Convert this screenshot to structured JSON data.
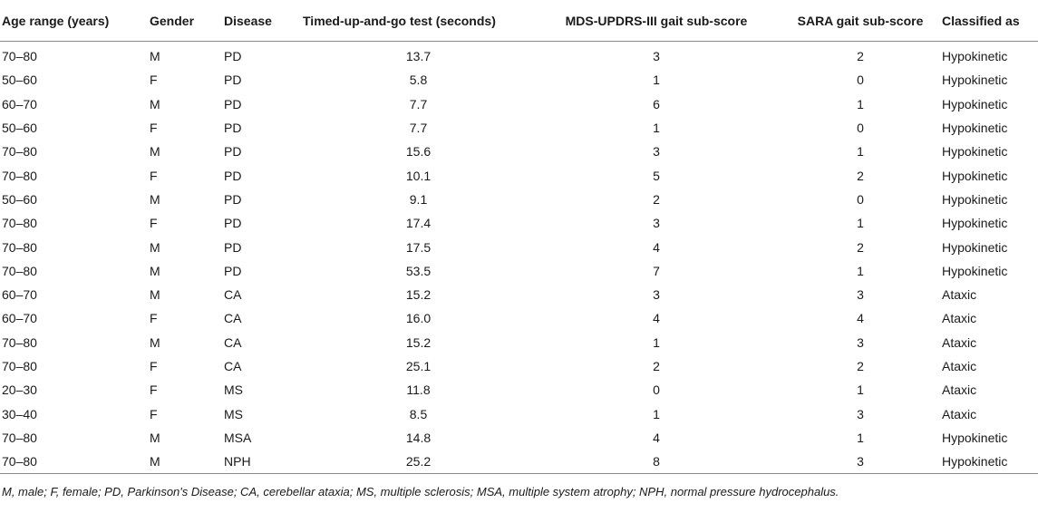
{
  "table": {
    "headers": [
      "Age range (years)",
      "Gender",
      "Disease",
      "Timed-up-and-go test (seconds)",
      "MDS-UPDRS-III gait sub-score",
      "SARA gait sub-score",
      "Classified as"
    ],
    "rows": [
      [
        "70–80",
        "M",
        "PD",
        "13.7",
        "3",
        "2",
        "Hypokinetic"
      ],
      [
        "50–60",
        "F",
        "PD",
        "5.8",
        "1",
        "0",
        "Hypokinetic"
      ],
      [
        "60–70",
        "M",
        "PD",
        "7.7",
        "6",
        "1",
        "Hypokinetic"
      ],
      [
        "50–60",
        "F",
        "PD",
        "7.7",
        "1",
        "0",
        "Hypokinetic"
      ],
      [
        "70–80",
        "M",
        "PD",
        "15.6",
        "3",
        "1",
        "Hypokinetic"
      ],
      [
        "70–80",
        "F",
        "PD",
        "10.1",
        "5",
        "2",
        "Hypokinetic"
      ],
      [
        "50–60",
        "M",
        "PD",
        "9.1",
        "2",
        "0",
        "Hypokinetic"
      ],
      [
        "70–80",
        "F",
        "PD",
        "17.4",
        "3",
        "1",
        "Hypokinetic"
      ],
      [
        "70–80",
        "M",
        "PD",
        "17.5",
        "4",
        "2",
        "Hypokinetic"
      ],
      [
        "70–80",
        "M",
        "PD",
        "53.5",
        "7",
        "1",
        "Hypokinetic"
      ],
      [
        "60–70",
        "M",
        "CA",
        "15.2",
        "3",
        "3",
        "Ataxic"
      ],
      [
        "60–70",
        "F",
        "CA",
        "16.0",
        "4",
        "4",
        "Ataxic"
      ],
      [
        "70–80",
        "M",
        "CA",
        "15.2",
        "1",
        "3",
        "Ataxic"
      ],
      [
        "70–80",
        "F",
        "CA",
        "25.1",
        "2",
        "2",
        "Ataxic"
      ],
      [
        "20–30",
        "F",
        "MS",
        "11.8",
        "0",
        "1",
        "Ataxic"
      ],
      [
        "30–40",
        "F",
        "MS",
        "8.5",
        "1",
        "3",
        "Ataxic"
      ],
      [
        "70–80",
        "M",
        "MSA",
        "14.8",
        "4",
        "1",
        "Hypokinetic"
      ],
      [
        "70–80",
        "M",
        "NPH",
        "25.2",
        "8",
        "3",
        "Hypokinetic"
      ]
    ]
  },
  "footnote": "M, male; F, female; PD, Parkinson's Disease; CA, cerebellar ataxia; MS, multiple sclerosis; MSA, multiple system atrophy; NPH, normal pressure hydrocephalus."
}
